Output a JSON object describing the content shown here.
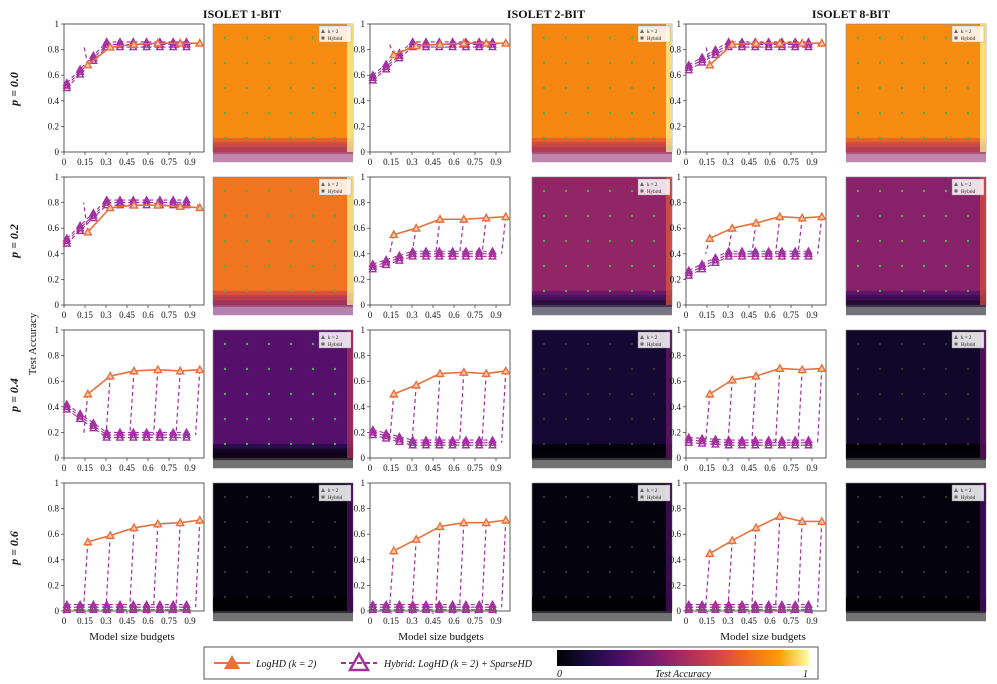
{
  "colors": {
    "logHD": "#e8703a",
    "hybrid": "#a2309e",
    "marker_dot": "#4caf50"
  },
  "figure": {
    "column_titles": [
      "ISOLET 1-BIT",
      "ISOLET 2-BIT",
      "ISOLET 8-BIT"
    ],
    "row_labels": [
      "p = 0.0",
      "p = 0.2",
      "p = 0.4",
      "p = 0.6"
    ],
    "ylabel": "Test Accuracy",
    "xlabel": "Model size budgets",
    "x_ticks": [
      "0",
      "0.15",
      "0.3",
      "0.45",
      "0.6",
      "0.75",
      "0.9"
    ],
    "y_ticks": [
      "0",
      "0.2",
      "0.4",
      "0.6",
      "0.8",
      "1"
    ],
    "contour_legend": [
      "k = 2",
      "Hybrid"
    ],
    "colorbar": {
      "min_label": "0",
      "title": "Test Accuracy",
      "max_label": "1"
    },
    "legend": {
      "logHD": "LogHD (k = 2)",
      "hybrid": "Hybrid: LogHD (k = 2) + SparseHD"
    }
  },
  "chart_data": {
    "type": "line",
    "xlim": [
      0,
      1.0
    ],
    "ylim": [
      0,
      1
    ],
    "x": [
      0.17,
      0.33,
      0.5,
      0.67,
      0.83,
      0.97
    ],
    "panels": [
      {
        "row": 0,
        "col": 0,
        "logHD": [
          0.68,
          0.82,
          0.84,
          0.85,
          0.85,
          0.85
        ],
        "hybrid_level": 0.84,
        "hybrid_start": 0.52,
        "heat_level": 0.84
      },
      {
        "row": 0,
        "col": 1,
        "logHD": [
          0.76,
          0.83,
          0.84,
          0.85,
          0.85,
          0.85
        ],
        "hybrid_level": 0.84,
        "hybrid_start": 0.58,
        "heat_level": 0.83
      },
      {
        "row": 0,
        "col": 2,
        "logHD": [
          0.68,
          0.84,
          0.85,
          0.85,
          0.85,
          0.85
        ],
        "hybrid_level": 0.84,
        "hybrid_start": 0.66,
        "heat_level": 0.84
      },
      {
        "row": 1,
        "col": 0,
        "logHD": [
          0.57,
          0.76,
          0.78,
          0.78,
          0.77,
          0.76
        ],
        "hybrid_level": 0.8,
        "hybrid_start": 0.5,
        "heat_level": 0.78
      },
      {
        "row": 1,
        "col": 1,
        "logHD": [
          0.55,
          0.6,
          0.67,
          0.67,
          0.68,
          0.69
        ],
        "hybrid_level": 0.4,
        "hybrid_start": 0.3,
        "heat_level": 0.45
      },
      {
        "row": 1,
        "col": 2,
        "logHD": [
          0.52,
          0.6,
          0.64,
          0.69,
          0.68,
          0.69
        ],
        "hybrid_level": 0.4,
        "hybrid_start": 0.25,
        "heat_level": 0.42
      },
      {
        "row": 2,
        "col": 0,
        "logHD": [
          0.5,
          0.64,
          0.68,
          0.69,
          0.68,
          0.69
        ],
        "hybrid_level": 0.18,
        "hybrid_start": 0.4,
        "heat_level": 0.28
      },
      {
        "row": 2,
        "col": 1,
        "logHD": [
          0.5,
          0.57,
          0.66,
          0.67,
          0.66,
          0.68
        ],
        "hybrid_level": 0.12,
        "hybrid_start": 0.2,
        "heat_level": 0.1
      },
      {
        "row": 2,
        "col": 2,
        "logHD": [
          0.5,
          0.61,
          0.64,
          0.7,
          0.69,
          0.7
        ],
        "hybrid_level": 0.12,
        "hybrid_start": 0.14,
        "heat_level": 0.08
      },
      {
        "row": 3,
        "col": 0,
        "logHD": [
          0.54,
          0.59,
          0.65,
          0.68,
          0.69,
          0.71
        ],
        "hybrid_level": 0.03,
        "hybrid_start": 0.03,
        "heat_level": 0.02
      },
      {
        "row": 3,
        "col": 1,
        "logHD": [
          0.47,
          0.56,
          0.66,
          0.69,
          0.69,
          0.71
        ],
        "hybrid_level": 0.03,
        "hybrid_start": 0.03,
        "heat_level": 0.02
      },
      {
        "row": 3,
        "col": 2,
        "logHD": [
          0.45,
          0.55,
          0.65,
          0.74,
          0.7,
          0.7
        ],
        "hybrid_level": 0.03,
        "hybrid_start": 0.03,
        "heat_level": 0.02
      }
    ]
  }
}
